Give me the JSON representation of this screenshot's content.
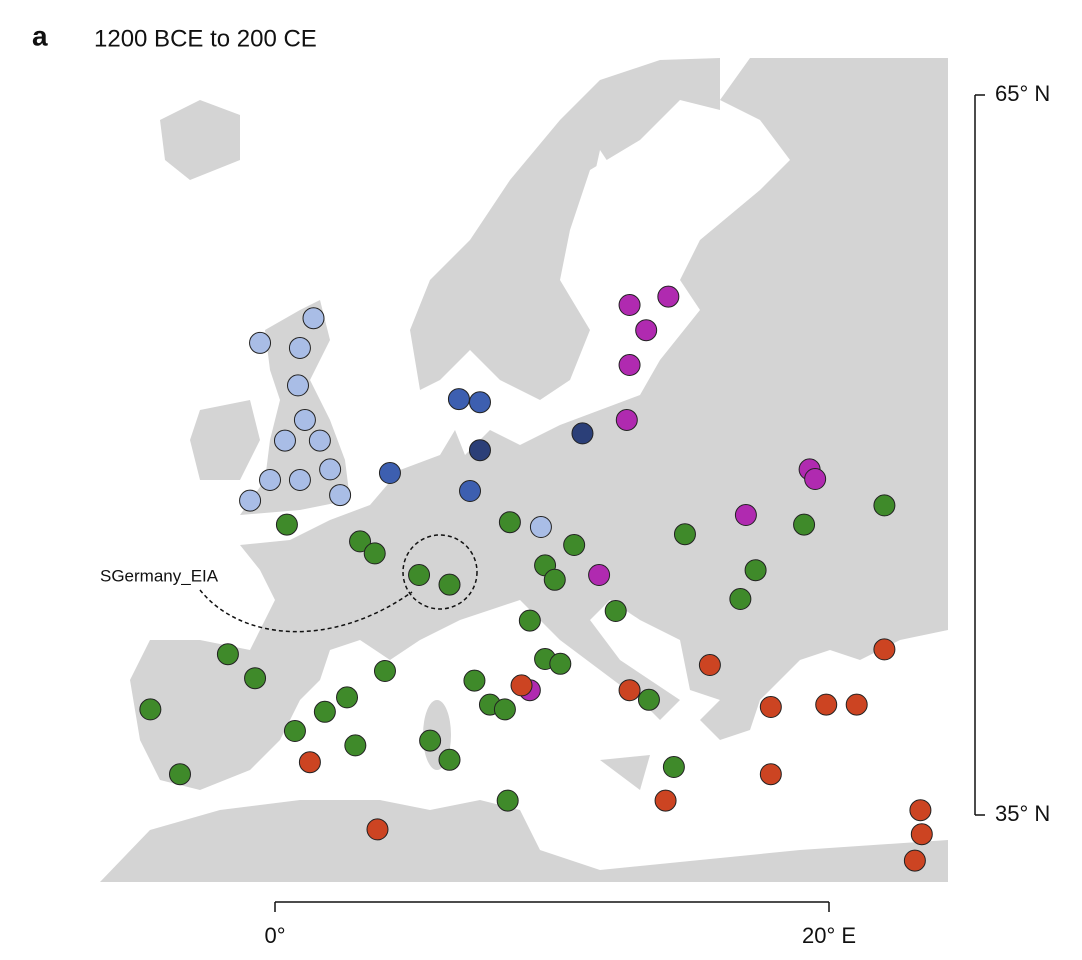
{
  "panel_label": "a",
  "chart_data": {
    "type": "site-map",
    "title": "1200 BCE to 200 CE",
    "annotation": "SGermany_EIA",
    "xlim": [
      0,
      20
    ],
    "ylim": [
      35,
      65
    ],
    "xticks": [
      {
        "value": 0,
        "label": "0°"
      },
      {
        "value": 20,
        "label": "20° E"
      }
    ],
    "yticks": [
      {
        "value": 35,
        "label": "35° N"
      },
      {
        "value": 65,
        "label": "65° N"
      }
    ],
    "groups": [
      {
        "color": "#a9bde6",
        "lon": [
          -0.54,
          1.39,
          0.9,
          0.83,
          1.08,
          0.36,
          1.62,
          -0.18,
          -0.9,
          0.9,
          1.99,
          2.35,
          9.6
        ],
        "lat": [
          54.67,
          55.7,
          54.46,
          52.9,
          51.46,
          50.6,
          50.6,
          48.96,
          48.1,
          48.96,
          49.4,
          48.33,
          47.0
        ]
      },
      {
        "color": "#2b3f78",
        "lon": [
          11.1,
          7.4
        ],
        "lat": [
          50.9,
          50.2
        ]
      },
      {
        "color": "#3d5fb0",
        "lon": [
          6.64,
          7.4,
          4.15,
          7.04
        ],
        "lat": [
          52.33,
          52.2,
          49.25,
          48.5
        ]
      },
      {
        "color": "#b02ab0",
        "lon": [
          12.8,
          14.2,
          13.4,
          12.8,
          12.7,
          19.3,
          19.5,
          17.0,
          11.7,
          9.2
        ],
        "lat": [
          56.25,
          56.6,
          55.2,
          53.75,
          51.46,
          49.4,
          49.0,
          47.5,
          45.0,
          40.2
        ]
      },
      {
        "color": "#3f8a2a",
        "lon": [
          0.43,
          8.48,
          3.07,
          3.6,
          5.2,
          6.3,
          9.75,
          10.8,
          10.1,
          12.3,
          9.2,
          9.75,
          10.3,
          16.8,
          17.35,
          14.8,
          19.1,
          22.0,
          -1.7,
          -0.72,
          -4.5,
          -3.43,
          0.72,
          1.8,
          2.6,
          3.97,
          2.9,
          5.6,
          6.3,
          7.2,
          7.76,
          8.3,
          8.4,
          14.4,
          13.5
        ],
        "lat": [
          47.1,
          47.2,
          46.4,
          45.9,
          45.0,
          44.6,
          45.4,
          46.25,
          44.8,
          43.5,
          43.1,
          41.5,
          41.3,
          44.0,
          45.2,
          46.7,
          47.1,
          47.9,
          41.7,
          40.7,
          39.4,
          36.7,
          38.5,
          39.3,
          39.9,
          41.0,
          37.9,
          38.1,
          37.3,
          40.6,
          39.6,
          39.4,
          35.6,
          37.0,
          39.8
        ]
      },
      {
        "color": "#cc4422",
        "lon": [
          1.26,
          3.7,
          8.9,
          14.1,
          15.7,
          17.9,
          19.9,
          22.0,
          23.3,
          23.35,
          23.1,
          12.8,
          17.9,
          21.0
        ],
        "lat": [
          37.2,
          34.4,
          40.4,
          35.6,
          41.25,
          36.7,
          39.6,
          41.9,
          35.2,
          34.2,
          33.1,
          40.2,
          39.5,
          39.6
        ]
      }
    ]
  }
}
